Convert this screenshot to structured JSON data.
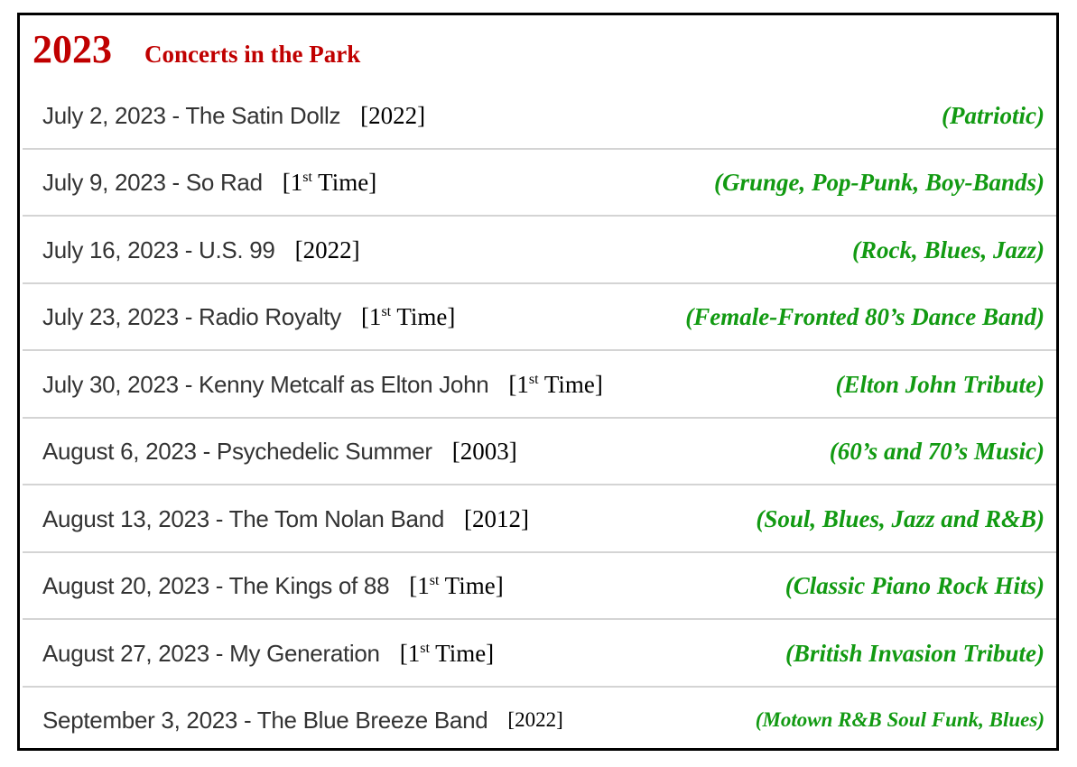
{
  "header": {
    "year": "2023",
    "title": "Concerts in the Park"
  },
  "colors": {
    "title": "#c00000",
    "genre": "#129a12",
    "event": "#333333"
  },
  "concerts": [
    {
      "event": "July 2, 2023 - The Satin Dollz",
      "note": "[2022]",
      "genre": "(Patriotic)"
    },
    {
      "event": "July 9, 2023 - So Rad",
      "note_pre": "[1",
      "note_sup": "st",
      "note_post": " Time]",
      "genre": "(Grunge, Pop-Punk, Boy-Bands)"
    },
    {
      "event": "July 16, 2023 - U.S. 99",
      "note": "[2022]",
      "genre": "(Rock, Blues, Jazz)"
    },
    {
      "event": "July 23, 2023 - Radio Royalty",
      "note_pre": "[1",
      "note_sup": "st",
      "note_post": " Time]",
      "genre": "(Female-Fronted 80’s Dance Band)"
    },
    {
      "event": "July 30, 2023 - Kenny Metcalf as Elton John",
      "note_pre": "[1",
      "note_sup": "st",
      "note_post": " Time]",
      "genre": "(Elton John Tribute)"
    },
    {
      "event": "August 6, 2023 - Psychedelic Summer",
      "note": "[2003]",
      "genre": "(60’s and 70’s Music)"
    },
    {
      "event": "August 13, 2023 - The Tom Nolan Band",
      "note": "[2012]",
      "genre": "(Soul, Blues, Jazz and R&B)"
    },
    {
      "event": "August 20, 2023 - The Kings of 88",
      "note_pre": "[1",
      "note_sup": "st",
      "note_post": " Time]",
      "genre": "(Classic Piano Rock Hits)"
    },
    {
      "event": "August 27, 2023 - My Generation",
      "note_pre": "[1",
      "note_sup": "st",
      "note_post": " Time]",
      "genre": "(British Invasion Tribute)"
    },
    {
      "event": "September 3, 2023 - The Blue Breeze Band",
      "note": "[2022]",
      "genre": "(Motown R&B Soul Funk, Blues)"
    }
  ]
}
